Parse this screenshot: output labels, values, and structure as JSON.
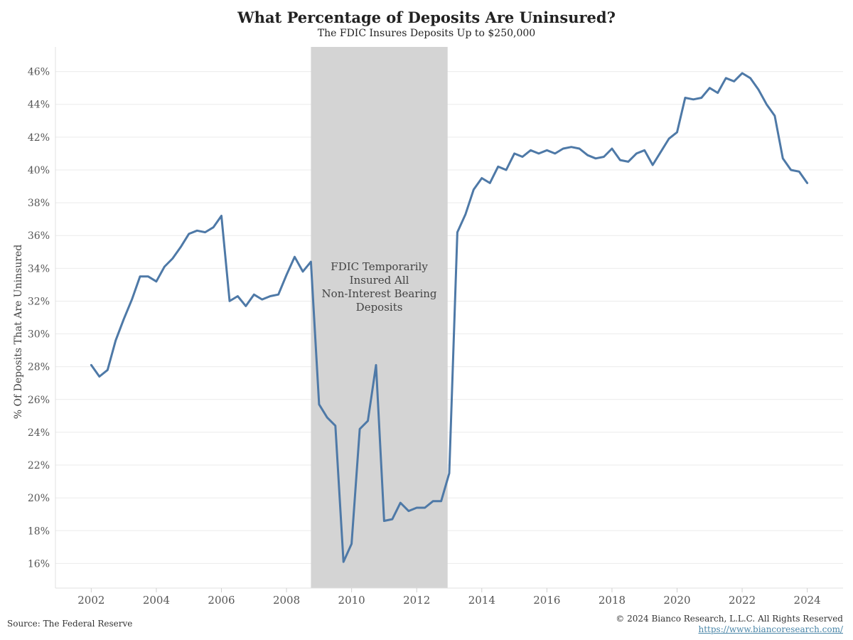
{
  "header": {
    "title": "What Percentage of Deposits Are Uninsured?",
    "subtitle": "The FDIC Insures Deposits Up to $250,000"
  },
  "footer": {
    "source": "Source: The Federal Reserve",
    "copyright": "© 2024 Bianco Research, L.L.C. All Rights Reserved",
    "website": "https://www.biancoresearch.com/"
  },
  "colors": {
    "line": "#4e79a7",
    "shading": "#d4d4d4",
    "grid": "#ebebeb"
  },
  "chart_data": {
    "type": "line",
    "title": "What Percentage of Deposits Are Uninsured?",
    "subtitle": "The FDIC Insures Deposits Up to $250,000",
    "xlabel": "",
    "ylabel": "% Of Deposits That Are Uninsured",
    "xlim": [
      2000.9,
      2025.1
    ],
    "ylim": [
      14.5,
      47.5
    ],
    "x_ticks": [
      2002,
      2004,
      2006,
      2008,
      2010,
      2012,
      2014,
      2016,
      2018,
      2020,
      2022,
      2024
    ],
    "y_ticks": [
      16,
      18,
      20,
      22,
      24,
      26,
      28,
      30,
      32,
      34,
      36,
      38,
      40,
      42,
      44,
      46
    ],
    "y_tick_suffix": "%",
    "grid": true,
    "shaded_region": {
      "x_start": 2008.75,
      "x_end": 2012.95,
      "label": [
        "FDIC Temporarily",
        "Insured All",
        "Non-Interest Bearing",
        "Deposits"
      ]
    },
    "series": [
      {
        "x": [
          2002.0,
          2002.25,
          2002.5,
          2002.75,
          2003.0,
          2003.25,
          2003.5,
          2003.75,
          2004.0,
          2004.25,
          2004.5,
          2004.75,
          2005.0,
          2005.25,
          2005.5,
          2005.75,
          2006.0,
          2006.25,
          2006.5,
          2006.75,
          2007.0,
          2007.25,
          2007.5,
          2007.75,
          2008.0,
          2008.25,
          2008.5,
          2008.75,
          2009.0,
          2009.25,
          2009.5,
          2009.75,
          2010.0,
          2010.25,
          2010.5,
          2010.75,
          2011.0,
          2011.25,
          2011.5,
          2011.75,
          2012.0,
          2012.25,
          2012.5,
          2012.75,
          2013.0,
          2013.25,
          2013.5,
          2013.75,
          2014.0,
          2014.25,
          2014.5,
          2014.75,
          2015.0,
          2015.25,
          2015.5,
          2015.75,
          2016.0,
          2016.25,
          2016.5,
          2016.75,
          2017.0,
          2017.25,
          2017.5,
          2017.75,
          2018.0,
          2018.25,
          2018.5,
          2018.75,
          2019.0,
          2019.25,
          2019.5,
          2019.75,
          2020.0,
          2020.25,
          2020.5,
          2020.75,
          2021.0,
          2021.25,
          2021.5,
          2021.75,
          2022.0,
          2022.25,
          2022.5,
          2022.75,
          2023.0,
          2023.25,
          2023.5,
          2023.75,
          2024.0
        ],
        "values": [
          28.1,
          27.4,
          27.8,
          29.6,
          30.9,
          32.1,
          33.5,
          33.5,
          33.2,
          34.1,
          34.6,
          35.3,
          36.1,
          36.3,
          36.2,
          36.5,
          37.2,
          32.0,
          32.3,
          31.7,
          32.4,
          32.1,
          32.3,
          32.4,
          33.6,
          34.7,
          33.8,
          34.4,
          25.7,
          24.9,
          24.4,
          16.1,
          17.2,
          24.2,
          24.7,
          28.1,
          18.6,
          18.7,
          19.7,
          19.2,
          19.4,
          19.4,
          19.8,
          19.8,
          21.5,
          36.2,
          37.3,
          38.8,
          39.5,
          39.2,
          40.2,
          40.0,
          41.0,
          40.8,
          41.2,
          41.0,
          41.2,
          41.0,
          41.3,
          41.4,
          41.3,
          40.9,
          40.7,
          40.8,
          41.3,
          40.6,
          40.5,
          41.0,
          41.2,
          40.3,
          41.1,
          41.9,
          42.3,
          44.4,
          44.3,
          44.4,
          45.0,
          44.7,
          45.6,
          45.4,
          45.9,
          45.6,
          44.9,
          44.0,
          43.3,
          40.7,
          40.0,
          39.9,
          39.2
        ]
      }
    ]
  }
}
